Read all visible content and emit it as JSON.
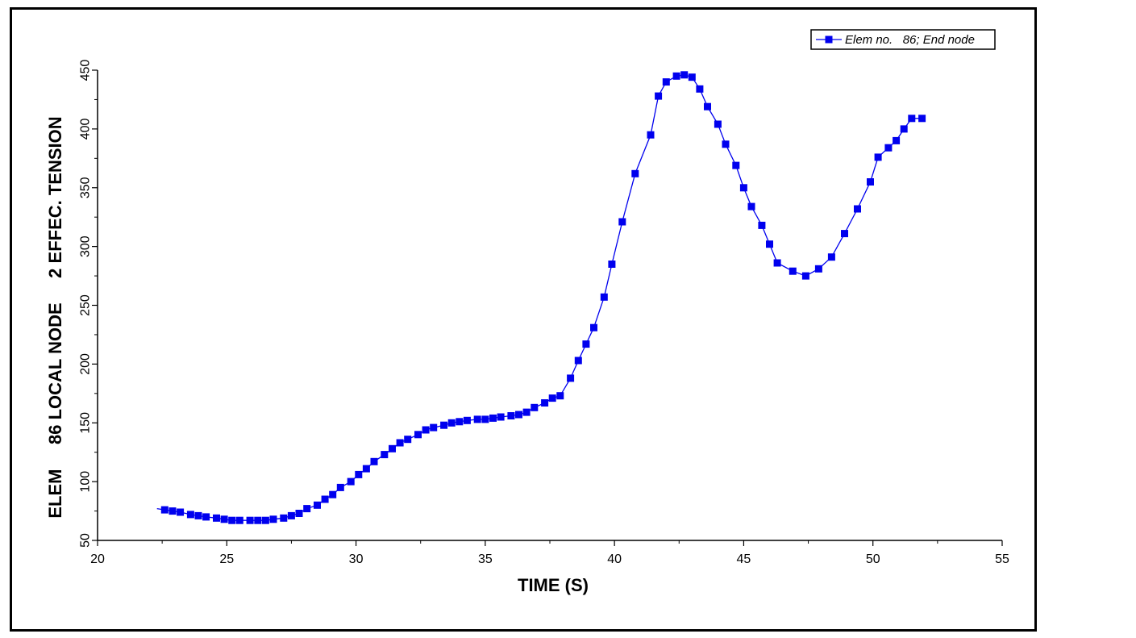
{
  "chart_data": {
    "type": "line",
    "title": "",
    "xlabel": "TIME (S)",
    "ylabel": "ELEM     86 LOCAL NODE     2 EFFEC. TENSION",
    "xlim": [
      20,
      55
    ],
    "ylim": [
      50,
      450
    ],
    "xticks": [
      20,
      25,
      30,
      35,
      40,
      45,
      50,
      55
    ],
    "yticks": [
      50,
      100,
      150,
      200,
      250,
      300,
      350,
      400,
      450
    ],
    "grid": false,
    "legend_position": "top-right",
    "colors": {
      "series": "#0000ee",
      "axis": "#000000"
    },
    "series": [
      {
        "name": "Elem no.   86; End node",
        "line_start": [
          22.3,
          77
        ],
        "x": [
          22.6,
          22.9,
          23.2,
          23.6,
          23.9,
          24.2,
          24.6,
          24.9,
          25.2,
          25.5,
          25.9,
          26.2,
          26.5,
          26.8,
          27.2,
          27.5,
          27.8,
          28.1,
          28.5,
          28.8,
          29.1,
          29.4,
          29.8,
          30.1,
          30.4,
          30.7,
          31.1,
          31.4,
          31.7,
          32.0,
          32.4,
          32.7,
          33.0,
          33.4,
          33.7,
          34.0,
          34.3,
          34.7,
          35.0,
          35.3,
          35.6,
          36.0,
          36.3,
          36.6,
          36.9,
          37.3,
          37.6,
          37.9,
          38.3,
          38.6,
          38.9,
          39.2,
          39.6,
          39.9,
          40.3,
          40.8,
          41.4,
          41.7,
          42.0,
          42.4,
          42.7,
          43.0,
          43.3,
          43.6,
          44.0,
          44.3,
          44.7,
          45.0,
          45.3,
          45.7,
          46.0,
          46.3,
          46.9,
          47.4,
          47.9,
          48.4,
          48.9,
          49.4,
          49.9,
          50.2,
          50.6,
          50.9,
          51.2,
          51.5,
          51.9
        ],
        "y": [
          76,
          75,
          74,
          72,
          71,
          70,
          69,
          68,
          67,
          67,
          67,
          67,
          67,
          68,
          69,
          71,
          73,
          77,
          80,
          85,
          89,
          95,
          100,
          106,
          111,
          117,
          123,
          128,
          133,
          136,
          140,
          144,
          146,
          148,
          150,
          151,
          152,
          153,
          153,
          154,
          155,
          156,
          157,
          159,
          163,
          167,
          171,
          173,
          188,
          203,
          217,
          231,
          257,
          285,
          321,
          362,
          395,
          428,
          440,
          445,
          446,
          444,
          434,
          419,
          404,
          387,
          369,
          350,
          334,
          318,
          302,
          286,
          279,
          275,
          281,
          291,
          311,
          332,
          355,
          376,
          384,
          390,
          400,
          409,
          409
        ]
      }
    ]
  }
}
